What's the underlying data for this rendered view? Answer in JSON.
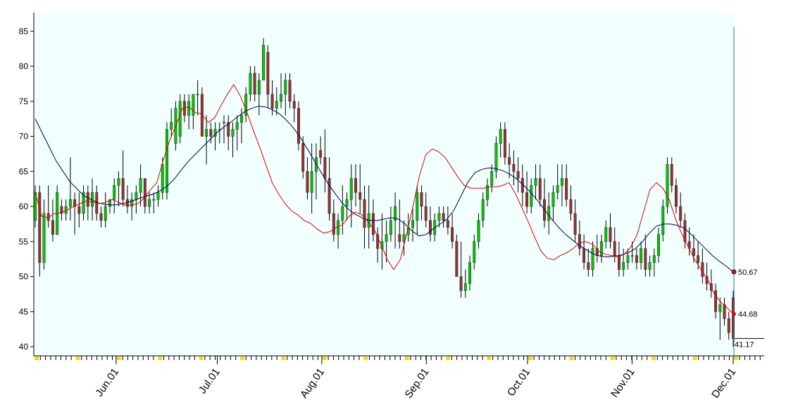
{
  "chart_data": {
    "type": "candlestick",
    "title": "",
    "xlabel": "",
    "ylabel": "",
    "ylim": [
      39,
      87
    ],
    "y_ticks": [
      40,
      45,
      50,
      55,
      60,
      65,
      70,
      75,
      80,
      85
    ],
    "x_ticks": [
      {
        "date": "2013-06-01",
        "label": "Jun.01"
      },
      {
        "date": "2013-07-01",
        "label": "Jul.01"
      },
      {
        "date": "2013-08-01",
        "label": "Aug.01"
      },
      {
        "date": "2013-09-01",
        "label": "Sep.01"
      },
      {
        "date": "2013-10-01",
        "label": "Oct.01"
      },
      {
        "date": "2013-11-01",
        "label": "Nov.01"
      },
      {
        "date": "2013-12-01",
        "label": "Dec.01"
      }
    ],
    "grid": false,
    "colors": {
      "background": "#f2ffff",
      "up": "#00c800",
      "down": "#963232",
      "short_ma": "#e00000",
      "long_ma": "#000050",
      "cursor": "#1e78b4",
      "tick_marker": "#ffd700"
    },
    "candles": [
      [
        58,
        63,
        57,
        62
      ],
      [
        62,
        63,
        50,
        52
      ],
      [
        52,
        61,
        51,
        59
      ],
      [
        59,
        63,
        57,
        58
      ],
      [
        58,
        61,
        55,
        56
      ],
      [
        56,
        63,
        56,
        62
      ],
      [
        60,
        61,
        58,
        59
      ],
      [
        59,
        61,
        58,
        60
      ],
      [
        60,
        67,
        58,
        61
      ],
      [
        61,
        62,
        56,
        60
      ],
      [
        60,
        62,
        57,
        59
      ],
      [
        59,
        63,
        58,
        62
      ],
      [
        62,
        63,
        58,
        60
      ],
      [
        60,
        64,
        58,
        62
      ],
      [
        62,
        63,
        58,
        59
      ],
      [
        59,
        60,
        57,
        58
      ],
      [
        58,
        62,
        57,
        60
      ],
      [
        60,
        61,
        59,
        61
      ],
      [
        61,
        64,
        59,
        63
      ],
      [
        63,
        65,
        60,
        64
      ],
      [
        64,
        68,
        60,
        61
      ],
      [
        61,
        63,
        59,
        60
      ],
      [
        60,
        62,
        58,
        61
      ],
      [
        61,
        63,
        59,
        62
      ],
      [
        62,
        66,
        60,
        64
      ],
      [
        64,
        64,
        59,
        60
      ],
      [
        60,
        62,
        59,
        61
      ],
      [
        61,
        62,
        59,
        61
      ],
      [
        61,
        63,
        60,
        62
      ],
      [
        62,
        67,
        61,
        66
      ],
      [
        62,
        72,
        61,
        71
      ],
      [
        71,
        74,
        70,
        72
      ],
      [
        69,
        75,
        68,
        74
      ],
      [
        70,
        76,
        69,
        75
      ],
      [
        75,
        76,
        72,
        73
      ],
      [
        73,
        76,
        71,
        75
      ],
      [
        73,
        76,
        71,
        76
      ],
      [
        76,
        78,
        73,
        76
      ],
      [
        76,
        77,
        70,
        70
      ],
      [
        70,
        73,
        66,
        71
      ],
      [
        71,
        72,
        69,
        70
      ],
      [
        70,
        72,
        68,
        71
      ],
      [
        71,
        72,
        69,
        71
      ],
      [
        72,
        73,
        69,
        72
      ],
      [
        72,
        73,
        68,
        70
      ],
      [
        70,
        72,
        67,
        71
      ],
      [
        71,
        73,
        68,
        72
      ],
      [
        72,
        74,
        69,
        73
      ],
      [
        73,
        77,
        72,
        76
      ],
      [
        76,
        80,
        75,
        79
      ],
      [
        79,
        80,
        75,
        76
      ],
      [
        76,
        79,
        73,
        78
      ],
      [
        78,
        84,
        78,
        83
      ],
      [
        82,
        83,
        74,
        76
      ],
      [
        76,
        78,
        73,
        74
      ],
      [
        74,
        77,
        73,
        75
      ],
      [
        75,
        79,
        74,
        76
      ],
      [
        76,
        79,
        73,
        78
      ],
      [
        78,
        79,
        74,
        75
      ],
      [
        75,
        76,
        72,
        74
      ],
      [
        74,
        75,
        68,
        69
      ],
      [
        69,
        70,
        64,
        65
      ],
      [
        65,
        67,
        61,
        62
      ],
      [
        62,
        69,
        59,
        65
      ],
      [
        65,
        69,
        61,
        67
      ],
      [
        68,
        70,
        66,
        67
      ],
      [
        67,
        71,
        62,
        64
      ],
      [
        64,
        67,
        58,
        59
      ],
      [
        59,
        61,
        55,
        56
      ],
      [
        56,
        59,
        54,
        58
      ],
      [
        58,
        63,
        56,
        60
      ],
      [
        60,
        62,
        58,
        61
      ],
      [
        61,
        66,
        57,
        64
      ],
      [
        64,
        66,
        60,
        62
      ],
      [
        62,
        66,
        59,
        61
      ],
      [
        61,
        63,
        54,
        57
      ],
      [
        57,
        63,
        54,
        59
      ],
      [
        59,
        61,
        55,
        56
      ],
      [
        56,
        57,
        52,
        54
      ],
      [
        54,
        59,
        51,
        55
      ],
      [
        55,
        58,
        52,
        56
      ],
      [
        56,
        60,
        55,
        58
      ],
      [
        58,
        62,
        54,
        60
      ],
      [
        56,
        61,
        54,
        55
      ],
      [
        55,
        58,
        53,
        56
      ],
      [
        56,
        59,
        55,
        57
      ],
      [
        57,
        60,
        55,
        58
      ],
      [
        58,
        63,
        56,
        62
      ],
      [
        62,
        63,
        58,
        60
      ],
      [
        60,
        62,
        57,
        58
      ],
      [
        58,
        60,
        55,
        56
      ],
      [
        56,
        59,
        55,
        58
      ],
      [
        58,
        60,
        57,
        59
      ],
      [
        59,
        60,
        57,
        58
      ],
      [
        58,
        60,
        56,
        57
      ],
      [
        57,
        59,
        54,
        55
      ],
      [
        55,
        56,
        50,
        50
      ],
      [
        50,
        55,
        47,
        48
      ],
      [
        48,
        51,
        47,
        49
      ],
      [
        49,
        53,
        48,
        52
      ],
      [
        52,
        56,
        51,
        55
      ],
      [
        55,
        59,
        54,
        58
      ],
      [
        58,
        62,
        57,
        61
      ],
      [
        61,
        64,
        60,
        63
      ],
      [
        63,
        66,
        62,
        65
      ],
      [
        65,
        70,
        64,
        69
      ],
      [
        69,
        72,
        67,
        71
      ],
      [
        71,
        72,
        66,
        67
      ],
      [
        67,
        69,
        64,
        66
      ],
      [
        66,
        68,
        63,
        65
      ],
      [
        65,
        67,
        62,
        64
      ],
      [
        64,
        66,
        60,
        62
      ],
      [
        62,
        65,
        59,
        60
      ],
      [
        60,
        64,
        59,
        63
      ],
      [
        63,
        66,
        61,
        64
      ],
      [
        64,
        66,
        60,
        61
      ],
      [
        61,
        64,
        57,
        58
      ],
      [
        58,
        62,
        56,
        60
      ],
      [
        60,
        63,
        58,
        62
      ],
      [
        62,
        66,
        61,
        63
      ],
      [
        63,
        66,
        60,
        64
      ],
      [
        64,
        66,
        60,
        61
      ],
      [
        61,
        63,
        58,
        59
      ],
      [
        59,
        61,
        55,
        56
      ],
      [
        56,
        58,
        53,
        54
      ],
      [
        54,
        56,
        51,
        52
      ],
      [
        52,
        54,
        50,
        51
      ],
      [
        51,
        55,
        50,
        54
      ],
      [
        54,
        56,
        52,
        53
      ],
      [
        53,
        56,
        52,
        55
      ],
      [
        55,
        58,
        54,
        57
      ],
      [
        57,
        59,
        54,
        55
      ],
      [
        55,
        57,
        52,
        53
      ],
      [
        53,
        55,
        50,
        51
      ],
      [
        51,
        54,
        50,
        52
      ],
      [
        52,
        54,
        51,
        53
      ],
      [
        53,
        55,
        52,
        53
      ],
      [
        53,
        54,
        51,
        52
      ],
      [
        52,
        55,
        51,
        54
      ],
      [
        54,
        56,
        50,
        51
      ],
      [
        51,
        53,
        50,
        52
      ],
      [
        52,
        54,
        50,
        53
      ],
      [
        53,
        57,
        52,
        56
      ],
      [
        56,
        61,
        55,
        60
      ],
      [
        60,
        67,
        59,
        66
      ],
      [
        66,
        67,
        62,
        63
      ],
      [
        63,
        64,
        59,
        60
      ],
      [
        60,
        62,
        57,
        58
      ],
      [
        58,
        59,
        54,
        55
      ],
      [
        55,
        57,
        53,
        54
      ],
      [
        54,
        56,
        52,
        53
      ],
      [
        53,
        55,
        51,
        52
      ],
      [
        52,
        54,
        49,
        50
      ],
      [
        50,
        52,
        48,
        49
      ],
      [
        49,
        51,
        47,
        48
      ],
      [
        48,
        49,
        44,
        45
      ],
      [
        45,
        47,
        41,
        46
      ],
      [
        46,
        47,
        43,
        44
      ],
      [
        44,
        45,
        41,
        42
      ],
      [
        47,
        48,
        40,
        41.17
      ]
    ],
    "series": [
      {
        "type": "line",
        "values": [
          62,
          58.6,
          58.4,
          59,
          59.1,
          59.5,
          60,
          60.4,
          60.8,
          60.6,
          60.4,
          60.6,
          61,
          60.6,
          60.2,
          60.2,
          60.4,
          61.2,
          62.4,
          63.4,
          66.6,
          69.4,
          71.6,
          74,
          74.2,
          73.4,
          73.2,
          72,
          72.6,
          74.4,
          76,
          77.4,
          75.8,
          73.6,
          71,
          68.6,
          66,
          63.4,
          61.8,
          60.4,
          59.4,
          58.8,
          58,
          57.6,
          56.8,
          56.2,
          56.4,
          57,
          57.4,
          58.6,
          59.2,
          58.8,
          57.8,
          56.6,
          54.6,
          52.4,
          51,
          52.4,
          56,
          60,
          64.4,
          67.4,
          68.2,
          67.8,
          67,
          65.6,
          64.2,
          63,
          62.6,
          62.6,
          62.6,
          62.8,
          62.8,
          63,
          63.4,
          61.8,
          59.8,
          57.8,
          55.6,
          53.6,
          52.6,
          52.4,
          53,
          53.4,
          54,
          54.8,
          55,
          54.6,
          53.6,
          53.2,
          53,
          52.8,
          53.2,
          54.2,
          56,
          59.2,
          62.4,
          63.4,
          62.6,
          61,
          58.2,
          56,
          54.2,
          52.4,
          51,
          49.6,
          47.6,
          46.4,
          45.6,
          44.68
        ]
      },
      {
        "type": "line",
        "values": [
          72.5,
          70.5,
          68.5,
          66.5,
          65,
          63.5,
          62.5,
          61.5,
          61,
          60.5,
          60.3,
          60.2,
          60.3,
          60.5,
          60.8,
          61.2,
          61.5,
          61.8,
          62.3,
          63,
          64,
          65.3,
          66.5,
          67.5,
          68.5,
          69.5,
          70.5,
          71.3,
          72,
          72.8,
          73.5,
          74,
          74.3,
          74.2,
          73.8,
          73.2,
          72.3,
          71.2,
          69.8,
          68.2,
          66.5,
          64.8,
          63.2,
          61.8,
          60.5,
          59.5,
          58.8,
          58.3,
          58,
          58,
          58.2,
          58.4,
          58.2,
          57.5,
          56.5,
          55.8,
          56,
          56.8,
          57.5,
          58.2,
          59.5,
          61.5,
          63.5,
          64.8,
          65.3,
          65.5,
          65.4,
          65.1,
          64.6,
          63.9,
          63,
          62,
          60.8,
          59.5,
          58.2,
          57,
          56,
          55.2,
          54.4,
          53.8,
          53.2,
          52.9,
          52.8,
          52.9,
          53.1,
          53.4,
          54,
          55,
          56.2,
          57.2,
          57.5,
          57.5,
          57.3,
          56.9,
          56,
          55,
          54,
          53,
          52.2,
          51.5,
          50.67
        ]
      }
    ],
    "last_labels": {
      "long_ma": "50.67",
      "short_ma": "44.68",
      "close": "41.17"
    }
  }
}
